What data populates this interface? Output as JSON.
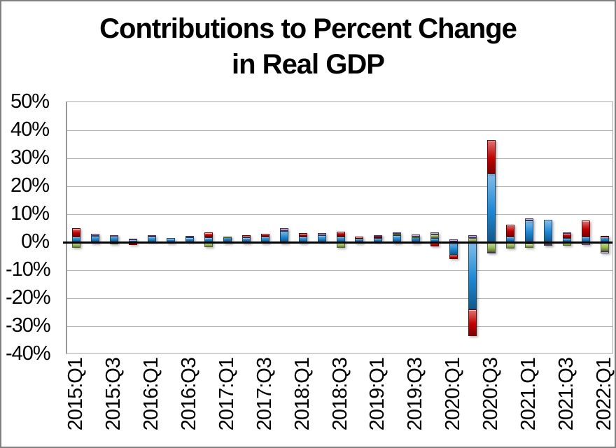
{
  "window": {
    "background_color": "#FFFFFF",
    "border_color": "#7F7F7F"
  },
  "title": {
    "line1": "Contributions to Percent Change",
    "line2": "in Real GDP"
  },
  "axis_colors": {
    "gridline": "#B4B4B4",
    "zero_line": "#000000",
    "plot_border": "#A6A6A6"
  },
  "chart_data": {
    "type": "bar",
    "stacked": true,
    "title": "Contributions to Percent Change in Real GDP",
    "xlabel": "",
    "ylabel": "",
    "ylim": [
      -40,
      50
    ],
    "grid": true,
    "legend": false,
    "y_ticks": [
      {
        "label": "50%",
        "value": 50
      },
      {
        "label": "40%",
        "value": 40
      },
      {
        "label": "30%",
        "value": 30
      },
      {
        "label": "20%",
        "value": 20
      },
      {
        "label": "10%",
        "value": 10
      },
      {
        "label": "0%",
        "value": 0
      },
      {
        "label": "-10%",
        "value": -10
      },
      {
        "label": "-20%",
        "value": -20
      },
      {
        "label": "-30%",
        "value": -30
      },
      {
        "label": "-40%",
        "value": -40
      }
    ],
    "categories": [
      "2015:Q1",
      "2015:Q2",
      "2015:Q3",
      "2015:Q4",
      "2016:Q1",
      "2016:Q2",
      "2016:Q3",
      "2016:Q4",
      "2017:Q1",
      "2017:Q2",
      "2017:Q3",
      "2017:Q4",
      "2018:Q1",
      "2018:Q2",
      "2018:Q3",
      "2018:Q4",
      "2019:Q1",
      "2019:Q2",
      "2019:Q3",
      "2019:Q4",
      "2020:Q1",
      "2020:Q2",
      "2020:Q3",
      "2020:Q4",
      "2021:Q1",
      "2021:Q2",
      "2021:Q3",
      "2021:Q4",
      "2022:Q1"
    ],
    "x_tick_labels": [
      "2015:Q1",
      "2015:Q3",
      "2016:Q1",
      "2016:Q3",
      "2017:Q1",
      "2017:Q3",
      "2018:Q1",
      "2018:Q3",
      "2019:Q1",
      "2019:Q3",
      "2020:Q1",
      "2020:Q3",
      "2021.Q1",
      "2021:Q3",
      "2022:Q1"
    ],
    "series": [
      {
        "name": "blue-series",
        "color": "#1E87D3",
        "values": [
          2.0,
          2.2,
          2.2,
          1.1,
          1.9,
          1.5,
          1.8,
          1.8,
          1.9,
          1.7,
          1.9,
          4.1,
          2.0,
          2.6,
          2.0,
          1.3,
          1.5,
          2.6,
          1.9,
          1.5,
          -4.4,
          -24.0,
          24.5,
          2.0,
          7.8,
          7.9,
          1.4,
          2.0,
          1.9
        ]
      },
      {
        "name": "red-series",
        "color": "#C00000",
        "values": [
          2.9,
          0.0,
          0.0,
          -1.1,
          0.0,
          0.0,
          0.0,
          1.8,
          0.0,
          0.9,
          1.1,
          0.0,
          1.2,
          0.0,
          1.7,
          0.6,
          0.9,
          -0.4,
          -0.2,
          -1.6,
          -1.6,
          -9.4,
          12.0,
          4.3,
          -0.5,
          -0.6,
          1.9,
          5.8,
          0.4
        ]
      },
      {
        "name": "green-series",
        "color": "#9BBB59",
        "values": [
          -1.9,
          -0.2,
          -0.8,
          0.0,
          0.0,
          0.0,
          0.0,
          -1.7,
          0.2,
          -0.2,
          -0.3,
          -0.3,
          -0.2,
          0.0,
          -1.9,
          -0.2,
          0.0,
          0.3,
          0.2,
          1.3,
          0.3,
          1.6,
          -3.6,
          -2.2,
          -1.5,
          -0.2,
          -1.3,
          -0.2,
          -3.3
        ]
      },
      {
        "name": "purple-series",
        "color": "#7D5FA5",
        "values": [
          0.0,
          0.7,
          0.4,
          0.2,
          0.5,
          -0.4,
          0.4,
          0.0,
          -0.6,
          0.0,
          0.0,
          0.9,
          0.0,
          0.6,
          0.0,
          0.0,
          0.2,
          0.7,
          0.6,
          0.8,
          0.6,
          0.8,
          -0.2,
          0.0,
          0.7,
          -0.4,
          0.2,
          -0.8,
          -0.8
        ]
      }
    ]
  }
}
